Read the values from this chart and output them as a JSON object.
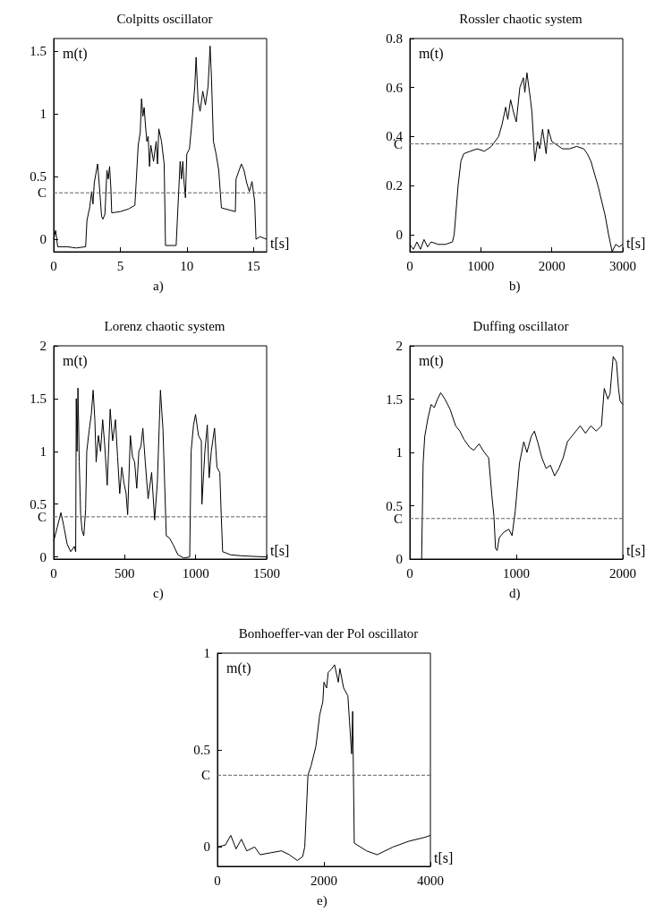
{
  "chart_data": [
    {
      "type": "line",
      "title": "Colpitts oscillator",
      "xlabel": "t[s]",
      "ylabel": "m(t)",
      "annotations": [
        "a)"
      ],
      "xlim": [
        0,
        16
      ],
      "ylim": [
        -0.1,
        1.6
      ],
      "xticks": [
        0,
        5,
        10,
        15
      ],
      "yticks": [
        0,
        0.5,
        1,
        1.5
      ],
      "color": "#000000",
      "ref_lines": [
        {
          "axis": "y",
          "value": 0.37,
          "label": "C",
          "line_style": "dashed",
          "color": "#606060"
        }
      ],
      "x": [
        0,
        0.15,
        0.3,
        1,
        1.7,
        2.4,
        2.5,
        2.7,
        2.85,
        2.95,
        3.05,
        3.3,
        3.45,
        3.6,
        3.7,
        3.85,
        4.0,
        4.1,
        4.2,
        4.3,
        4.36,
        5,
        5.6,
        6.1,
        6.35,
        6.5,
        6.6,
        6.7,
        6.8,
        6.9,
        7.0,
        7.1,
        7.2,
        7.3,
        7.5,
        7.7,
        7.8,
        7.9,
        8.1,
        8.3,
        8.4,
        9.2,
        9.4,
        9.5,
        9.6,
        9.7,
        9.8,
        9.9,
        10.0,
        10.2,
        10.4,
        10.6,
        10.7,
        10.85,
        11.0,
        11.2,
        11.4,
        11.6,
        11.75,
        11.85,
        12.0,
        12.2,
        12.4,
        12.6,
        13.65,
        13.7,
        14.1,
        14.3,
        14.5,
        14.7,
        14.9,
        15.1,
        15.2,
        15.5,
        16
      ],
      "values": [
        0,
        0.07,
        -0.06,
        -0.06,
        -0.07,
        -0.06,
        0.15,
        0.25,
        0.38,
        0.28,
        0.45,
        0.6,
        0.4,
        0.18,
        0.16,
        0.2,
        0.55,
        0.48,
        0.58,
        0.4,
        0.21,
        0.22,
        0.24,
        0.27,
        0.75,
        0.85,
        1.12,
        0.98,
        1.05,
        0.9,
        0.78,
        0.82,
        0.58,
        0.75,
        0.62,
        0.78,
        0.6,
        0.88,
        0.78,
        0.6,
        -0.05,
        -0.05,
        0.4,
        0.62,
        0.48,
        0.62,
        0.45,
        0.33,
        0.68,
        0.72,
        0.95,
        1.22,
        1.45,
        1.1,
        1.02,
        1.18,
        1.07,
        1.22,
        1.54,
        1.3,
        0.78,
        0.68,
        0.55,
        0.25,
        0.22,
        0.48,
        0.6,
        0.55,
        0.45,
        0.38,
        0.46,
        0.3,
        0,
        0.02,
        0
      ]
    },
    {
      "type": "line",
      "title": "Rossler chaotic system",
      "xlabel": "t[s]",
      "ylabel": "m(t)",
      "annotations": [
        "b)"
      ],
      "xlim": [
        0,
        3000
      ],
      "ylim": [
        -0.07,
        0.8
      ],
      "xticks": [
        0,
        1000,
        2000,
        3000
      ],
      "yticks": [
        0,
        0.2,
        0.4,
        0.6,
        0.8
      ],
      "color": "#000000",
      "ref_lines": [
        {
          "axis": "y",
          "value": 0.37,
          "label": "C",
          "line_style": "dashed",
          "color": "#606060"
        }
      ],
      "x": [
        0,
        50,
        100,
        150,
        200,
        250,
        300,
        400,
        500,
        600,
        625,
        680,
        720,
        760,
        850,
        950,
        1050,
        1150,
        1200,
        1250,
        1300,
        1350,
        1380,
        1420,
        1460,
        1500,
        1550,
        1600,
        1620,
        1650,
        1700,
        1720,
        1760,
        1800,
        1830,
        1870,
        1920,
        1950,
        2000,
        2050,
        2150,
        2250,
        2350,
        2450,
        2500,
        2550,
        2650,
        2750,
        2800,
        2850,
        2900,
        2950,
        3000
      ],
      "values": [
        -0.04,
        -0.06,
        -0.03,
        -0.06,
        -0.02,
        -0.05,
        -0.03,
        -0.04,
        -0.04,
        -0.03,
        0.0,
        0.2,
        0.3,
        0.33,
        0.34,
        0.35,
        0.34,
        0.36,
        0.38,
        0.4,
        0.45,
        0.52,
        0.47,
        0.55,
        0.5,
        0.46,
        0.6,
        0.64,
        0.58,
        0.66,
        0.55,
        0.5,
        0.3,
        0.38,
        0.35,
        0.43,
        0.33,
        0.43,
        0.38,
        0.37,
        0.35,
        0.35,
        0.36,
        0.35,
        0.33,
        0.3,
        0.2,
        0.08,
        0.0,
        -0.07,
        -0.04,
        -0.05,
        -0.04
      ]
    },
    {
      "type": "line",
      "title": "Lorenz chaotic system",
      "xlabel": "t[s]",
      "ylabel": "m(t)",
      "annotations": [
        "c)"
      ],
      "xlim": [
        0,
        1500
      ],
      "ylim": [
        -0.02,
        2
      ],
      "xticks": [
        0,
        500,
        1000,
        1500
      ],
      "yticks": [
        0,
        0.5,
        1,
        1.5,
        2
      ],
      "color": "#000000",
      "ref_lines": [
        {
          "axis": "y",
          "value": 0.38,
          "label": "C",
          "line_style": "dashed",
          "color": "#606060"
        }
      ],
      "x": [
        0,
        25,
        51,
        70,
        95,
        120,
        145,
        155,
        159,
        165,
        171,
        180,
        190,
        200,
        212,
        225,
        233,
        250,
        265,
        278,
        290,
        299,
        315,
        330,
        345,
        360,
        377,
        398,
        415,
        435,
        450,
        465,
        480,
        495,
        510,
        521,
        540,
        555,
        570,
        585,
        600,
        615,
        628,
        645,
        665,
        690,
        711,
        730,
        752,
        770,
        793,
        815,
        840,
        875,
        917,
        958,
        968,
        985,
        999,
        1020,
        1040,
        1044,
        1065,
        1082,
        1095,
        1110,
        1133,
        1150,
        1170,
        1180,
        1190,
        1246,
        1329,
        1500
      ],
      "values": [
        0.15,
        0.28,
        0.42,
        0.3,
        0.12,
        0.05,
        0.1,
        0.05,
        1.5,
        1.0,
        1.6,
        0.9,
        0.4,
        0.25,
        0.2,
        0.45,
        1.0,
        1.2,
        1.35,
        1.58,
        1.3,
        0.9,
        1.15,
        1.0,
        1.3,
        1.05,
        0.68,
        1.4,
        1.1,
        1.3,
        0.95,
        0.6,
        0.85,
        0.7,
        0.6,
        0.4,
        1.15,
        0.95,
        0.9,
        0.65,
        1.0,
        1.05,
        1.22,
        0.9,
        0.55,
        0.8,
        0.35,
        0.7,
        1.58,
        1.2,
        0.2,
        0.18,
        0.12,
        0.02,
        -0.01,
        0.0,
        1.0,
        1.25,
        1.35,
        1.15,
        1.1,
        0.5,
        1.0,
        1.25,
        0.75,
        1.0,
        1.22,
        0.85,
        0.8,
        0.4,
        0.05,
        0.02,
        0.01,
        0.0
      ]
    },
    {
      "type": "line",
      "title": "Duffing oscillator",
      "xlabel": "t[s]",
      "ylabel": "m(t)",
      "annotations": [
        "d)"
      ],
      "xlim": [
        0,
        2000
      ],
      "ylim": [
        0,
        2
      ],
      "xticks": [
        0,
        1000,
        2000
      ],
      "yticks": [
        0,
        0.5,
        1,
        1.5,
        2
      ],
      "color": "#000000",
      "ref_lines": [
        {
          "axis": "y",
          "value": 0.38,
          "label": "C",
          "line_style": "dashed",
          "color": "#606060"
        }
      ],
      "x": [
        111,
        125,
        140,
        170,
        200,
        230,
        260,
        290,
        330,
        380,
        430,
        470,
        510,
        560,
        600,
        650,
        700,
        740,
        770,
        790,
        805,
        820,
        840,
        880,
        930,
        960,
        990,
        1030,
        1070,
        1100,
        1140,
        1170,
        1200,
        1240,
        1280,
        1320,
        1360,
        1400,
        1440,
        1480,
        1520,
        1560,
        1600,
        1650,
        1700,
        1750,
        1800,
        1826,
        1860,
        1880,
        1910,
        1940,
        1960,
        1975,
        2000
      ],
      "values": [
        0,
        0.9,
        1.15,
        1.32,
        1.45,
        1.42,
        1.5,
        1.56,
        1.5,
        1.4,
        1.25,
        1.2,
        1.12,
        1.05,
        1.02,
        1.08,
        1.0,
        0.95,
        0.6,
        0.4,
        0.1,
        0.08,
        0.2,
        0.25,
        0.28,
        0.22,
        0.45,
        0.9,
        1.1,
        1.0,
        1.15,
        1.2,
        1.1,
        0.95,
        0.85,
        0.88,
        0.78,
        0.85,
        0.95,
        1.1,
        1.15,
        1.2,
        1.25,
        1.18,
        1.25,
        1.2,
        1.25,
        1.6,
        1.5,
        1.55,
        1.9,
        1.85,
        1.6,
        1.48,
        1.45
      ]
    },
    {
      "type": "line",
      "title": "Bonhoeffer-van der Pol oscillator",
      "xlabel": "t[s]",
      "ylabel": "m(t)",
      "annotations": [
        "e)"
      ],
      "xlim": [
        0,
        4000
      ],
      "ylim": [
        -0.1,
        1
      ],
      "xticks": [
        0,
        2000,
        4000
      ],
      "yticks": [
        0,
        0.5,
        1
      ],
      "color": "#000000",
      "ref_lines": [
        {
          "axis": "y",
          "value": 0.37,
          "label": "C",
          "line_style": "dashed",
          "color": "#606060"
        }
      ],
      "x": [
        0,
        150,
        250,
        350,
        450,
        550,
        700,
        800,
        1000,
        1200,
        1350,
        1500,
        1600,
        1640,
        1700,
        1760,
        1850,
        1920,
        1980,
        2000,
        2050,
        2080,
        2150,
        2200,
        2270,
        2300,
        2370,
        2450,
        2480,
        2520,
        2540,
        2570,
        2800,
        3000,
        3300,
        3600,
        3900,
        4000
      ],
      "values": [
        0,
        0.01,
        0.06,
        -0.01,
        0.04,
        -0.02,
        0,
        -0.04,
        -0.03,
        -0.02,
        -0.04,
        -0.07,
        -0.05,
        0.0,
        0.37,
        0.42,
        0.52,
        0.68,
        0.75,
        0.85,
        0.82,
        0.9,
        0.92,
        0.94,
        0.85,
        0.92,
        0.82,
        0.78,
        0.65,
        0.48,
        0.7,
        0.02,
        -0.02,
        -0.04,
        0,
        0.03,
        0.05,
        0.06
      ]
    }
  ]
}
